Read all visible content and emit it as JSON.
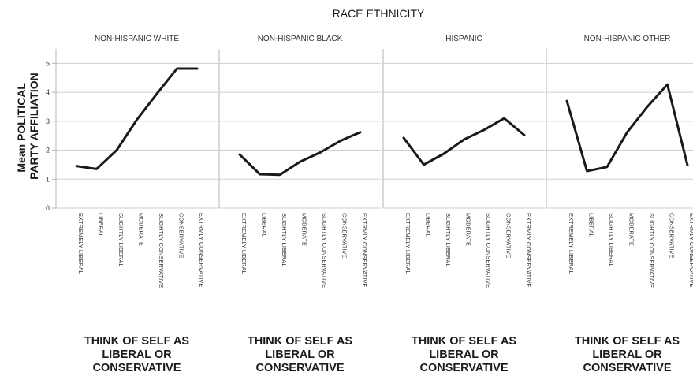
{
  "chart_data": {
    "type": "line",
    "title": "RACE ETHNICITY",
    "ylabel": "Mean POLITICAL PARTY AFFILIATION",
    "ylabel_lines": [
      "Mean POLITICAL",
      "PARTY AFFILIATION"
    ],
    "xlabel": "THINK OF SELF AS LIBERAL OR CONSERVATIVE",
    "xlabel_lines": [
      "THINK OF SELF AS",
      "LIBERAL OR",
      "CONSERVATIVE"
    ],
    "ylim": [
      0,
      5.5
    ],
    "yticks": [
      0,
      1,
      2,
      3,
      4,
      5
    ],
    "grid": true,
    "categories": [
      "EXTREMELY LIBERAL",
      "LIBERAL",
      "SLIGHTLY LIBERAL",
      "MODERATE",
      "SLIGHTLY CONSERVATIVE",
      "CONSERVATIVE",
      "EXTRMLY CONSERVATIVE"
    ],
    "series": [
      {
        "name": "NON-HISPANIC WHITE",
        "values": [
          1.45,
          1.35,
          2.0,
          3.05,
          3.95,
          4.82,
          4.82
        ]
      },
      {
        "name": "NON-HISPANIC BLACK",
        "values": [
          1.85,
          1.17,
          1.15,
          1.6,
          1.92,
          2.32,
          2.62
        ]
      },
      {
        "name": "HISPANIC",
        "values": [
          2.43,
          1.5,
          1.88,
          2.37,
          2.7,
          3.1,
          2.52
        ]
      },
      {
        "name": "NON-HISPANIC OTHER",
        "values": [
          3.7,
          1.28,
          1.42,
          2.62,
          3.5,
          4.27,
          1.48
        ]
      }
    ],
    "colors": {
      "line": "#1a1a1a",
      "grid": "#cfcfcf",
      "axis": "#b5b5b5"
    }
  }
}
